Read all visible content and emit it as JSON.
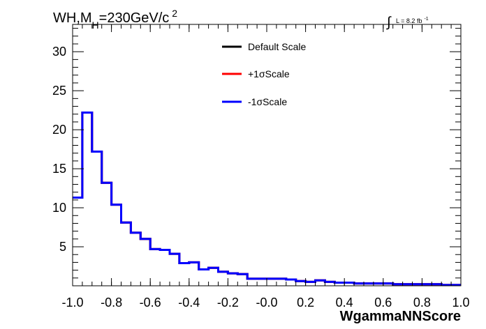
{
  "chart_data": {
    "type": "line",
    "title": "WH,M_H=230GeV/c^2",
    "title_parts": {
      "pre": "WH,M",
      "sub": "H",
      "post": "=230GeV/c",
      "sup": "2"
    },
    "lumi_label": {
      "integral": "∫",
      "text": "L = 8.2 fb",
      "sup": "-1"
    },
    "xlabel": "WgammaNNScore",
    "ylabel": "",
    "xlim": [
      -1.0,
      1.0
    ],
    "ylim": [
      0,
      33.5
    ],
    "x_ticks": [
      -1.0,
      -0.8,
      -0.6,
      -0.4,
      -0.2,
      0.0,
      0.2,
      0.4,
      0.6,
      0.8,
      1.0
    ],
    "x_tick_labels": [
      "-1.0",
      "-0.8",
      "-0.6",
      "-0.4",
      "-0.2",
      "-0.0",
      "0.2",
      "0.4",
      "0.6",
      "0.8",
      "1.0"
    ],
    "y_ticks": [
      5,
      10,
      15,
      20,
      25,
      30
    ],
    "y_tick_labels": [
      "5",
      "10",
      "15",
      "20",
      "25",
      "30"
    ],
    "grid": false,
    "legend_position": "top-center",
    "bin_edges": [
      -1.0,
      -0.95,
      -0.9,
      -0.85,
      -0.8,
      -0.75,
      -0.7,
      -0.65,
      -0.6,
      -0.55,
      -0.5,
      -0.45,
      -0.4,
      -0.35,
      -0.3,
      -0.25,
      -0.2,
      -0.15,
      -0.1,
      -0.05,
      0.0,
      0.05,
      0.1,
      0.15,
      0.2,
      0.25,
      0.3,
      0.35,
      0.4,
      0.45,
      0.5,
      0.55,
      0.6,
      0.65,
      0.7,
      0.75,
      0.8,
      0.85,
      0.9,
      0.95,
      1.0
    ],
    "series": [
      {
        "name": "Default Scale",
        "color": "#000000",
        "values": [
          11.3,
          22.2,
          17.2,
          13.2,
          10.4,
          8.1,
          6.8,
          6.0,
          4.7,
          4.6,
          4.1,
          2.9,
          3.0,
          2.1,
          2.3,
          1.8,
          1.6,
          1.5,
          0.9,
          0.9,
          0.9,
          0.9,
          0.8,
          0.6,
          0.5,
          0.7,
          0.5,
          0.4,
          0.4,
          0.3,
          0.3,
          0.3,
          0.3,
          0.2,
          0.2,
          0.2,
          0.2,
          0.2,
          0.1,
          0.1
        ]
      },
      {
        "name": "+1σScale",
        "color": "#ff0000",
        "values": [
          11.3,
          22.2,
          17.2,
          13.2,
          10.4,
          8.1,
          6.8,
          6.0,
          4.7,
          4.6,
          4.1,
          2.9,
          3.0,
          2.1,
          2.3,
          1.8,
          1.6,
          1.5,
          0.9,
          0.9,
          0.9,
          0.9,
          0.8,
          0.6,
          0.5,
          0.7,
          0.5,
          0.4,
          0.4,
          0.3,
          0.3,
          0.3,
          0.3,
          0.2,
          0.2,
          0.2,
          0.2,
          0.2,
          0.1,
          0.1
        ]
      },
      {
        "name": "-1σScale",
        "color": "#0000ff",
        "values": [
          11.3,
          22.2,
          17.2,
          13.2,
          10.4,
          8.1,
          6.8,
          6.0,
          4.7,
          4.6,
          4.1,
          2.9,
          3.0,
          2.1,
          2.3,
          1.8,
          1.6,
          1.5,
          0.9,
          0.9,
          0.9,
          0.9,
          0.8,
          0.6,
          0.5,
          0.7,
          0.5,
          0.4,
          0.4,
          0.3,
          0.3,
          0.3,
          0.3,
          0.2,
          0.2,
          0.2,
          0.2,
          0.2,
          0.1,
          0.1
        ]
      }
    ]
  }
}
